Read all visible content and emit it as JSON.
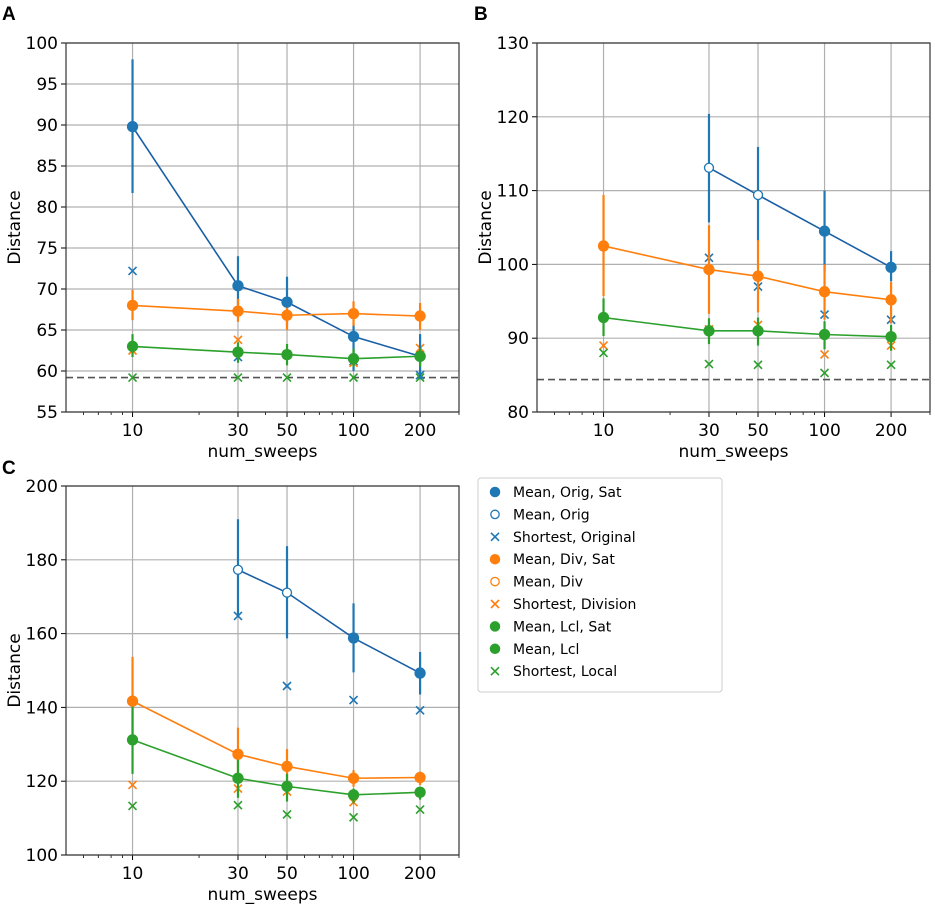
{
  "chart_data": [
    {
      "type": "line",
      "panel": "A",
      "xlabel": "num_sweeps",
      "ylabel": "Distance",
      "xscale": "log",
      "xlim": [
        5,
        300
      ],
      "ylim": [
        55,
        100
      ],
      "x": [
        10,
        30,
        50,
        100,
        200
      ],
      "xticks": [
        "10",
        "30",
        "50",
        "100",
        "200"
      ],
      "yticks": [
        "55",
        "60",
        "65",
        "70",
        "75",
        "80",
        "85",
        "90",
        "95",
        "100"
      ],
      "grid": true,
      "baseline": 59.2,
      "mean_series": [
        {
          "name": "Mean, Orig",
          "color": "#1f77b4",
          "line_color": "#1a5fa6",
          "y": [
            89.8,
            70.4,
            68.4,
            64.2,
            61.8
          ],
          "err_low": [
            81.7,
            67.0,
            65.5,
            60.0,
            59.0
          ],
          "err_high": [
            98.0,
            74.0,
            71.5,
            65.7,
            64.5
          ],
          "sat": [
            true,
            true,
            true,
            true,
            true
          ]
        },
        {
          "name": "Mean, Div",
          "color": "#ff7f0e",
          "line_color": "#ff7f0e",
          "y": [
            68.0,
            67.3,
            66.8,
            67.0,
            66.7
          ],
          "err_low": [
            66.2,
            66.0,
            65.0,
            65.5,
            65.0
          ],
          "err_high": [
            69.9,
            68.8,
            68.5,
            68.5,
            68.3
          ],
          "sat": [
            true,
            true,
            true,
            true,
            true
          ]
        },
        {
          "name": "Mean, Lcl",
          "color": "#2ca02c",
          "line_color": "#2ca02c",
          "y": [
            63.0,
            62.3,
            62.0,
            61.5,
            61.8
          ],
          "err_low": [
            61.7,
            61.0,
            60.7,
            60.5,
            60.5
          ],
          "err_high": [
            64.5,
            63.5,
            63.3,
            62.7,
            62.8
          ],
          "sat": [
            true,
            true,
            true,
            true,
            true
          ]
        }
      ],
      "shortest_series": [
        {
          "name": "Shortest, Original",
          "color": "#1f77b4",
          "y": [
            72.2,
            61.7,
            62.0,
            61.2,
            59.5
          ]
        },
        {
          "name": "Shortest, Division",
          "color": "#ff7f0e",
          "y": [
            62.5,
            63.8,
            62.0,
            61.0,
            62.8
          ]
        },
        {
          "name": "Shortest, Local",
          "color": "#2ca02c",
          "y": [
            59.2,
            59.2,
            59.2,
            59.2,
            59.2
          ]
        }
      ]
    },
    {
      "type": "line",
      "panel": "B",
      "xlabel": "num_sweeps",
      "ylabel": "Distance",
      "xscale": "log",
      "xlim": [
        5,
        300
      ],
      "ylim": [
        80,
        130
      ],
      "x": [
        10,
        30,
        50,
        100,
        200
      ],
      "xticks": [
        "10",
        "30",
        "50",
        "100",
        "200"
      ],
      "yticks": [
        "80",
        "90",
        "100",
        "110",
        "120",
        "130"
      ],
      "grid": true,
      "baseline": 84.4,
      "mean_series": [
        {
          "name": "Mean, Orig",
          "color": "#1f77b4",
          "line_color": "#1a5fa6",
          "y": [
            null,
            113.1,
            109.4,
            104.5,
            99.6
          ],
          "err_low": [
            null,
            105.7,
            103.2,
            99.0,
            97.7
          ],
          "err_high": [
            null,
            120.4,
            115.9,
            110.0,
            101.8
          ],
          "sat": [
            true,
            false,
            false,
            true,
            true
          ]
        },
        {
          "name": "Mean, Div",
          "color": "#ff7f0e",
          "line_color": "#ff7f0e",
          "y": [
            102.5,
            99.3,
            98.4,
            96.3,
            95.2
          ],
          "err_low": [
            95.7,
            93.3,
            93.5,
            92.5,
            92.0
          ],
          "err_high": [
            109.4,
            105.3,
            103.3,
            100.0,
            97.6
          ],
          "sat": [
            true,
            true,
            true,
            true,
            true
          ]
        },
        {
          "name": "Mean, Lcl",
          "color": "#2ca02c",
          "line_color": "#2ca02c",
          "y": [
            92.8,
            91.0,
            91.0,
            90.5,
            90.2
          ],
          "err_low": [
            90.3,
            89.2,
            89.0,
            88.5,
            88.3
          ],
          "err_high": [
            95.4,
            92.7,
            92.8,
            92.3,
            91.8
          ],
          "sat": [
            true,
            true,
            true,
            true,
            true
          ]
        }
      ],
      "shortest_series": [
        {
          "name": "Shortest, Original",
          "color": "#1f77b4",
          "y": [
            null,
            100.9,
            97.0,
            93.2,
            92.5
          ]
        },
        {
          "name": "Shortest, Division",
          "color": "#ff7f0e",
          "y": [
            89.0,
            91.2,
            91.8,
            87.8,
            89.0
          ]
        },
        {
          "name": "Shortest, Local",
          "color": "#2ca02c",
          "y": [
            88.0,
            86.5,
            86.4,
            85.3,
            86.4
          ]
        }
      ]
    },
    {
      "type": "line",
      "panel": "C",
      "xlabel": "num_sweeps",
      "ylabel": "Distance",
      "xscale": "log",
      "xlim": [
        5,
        300
      ],
      "ylim": [
        100,
        200
      ],
      "x": [
        10,
        30,
        50,
        100,
        200
      ],
      "xticks": [
        "10",
        "30",
        "50",
        "100",
        "200"
      ],
      "yticks": [
        "100",
        "120",
        "140",
        "160",
        "180",
        "200"
      ],
      "grid": true,
      "baseline": null,
      "mean_series": [
        {
          "name": "Mean, Orig",
          "color": "#1f77b4",
          "line_color": "#1a5fa6",
          "y": [
            null,
            177.3,
            171.1,
            158.8,
            149.3
          ],
          "err_low": [
            null,
            165.0,
            158.7,
            149.5,
            143.5
          ],
          "err_high": [
            null,
            191.0,
            183.7,
            168.2,
            155.0
          ],
          "sat": [
            true,
            false,
            false,
            true,
            true
          ]
        },
        {
          "name": "Mean, Div",
          "color": "#ff7f0e",
          "line_color": "#ff7f0e",
          "y": [
            141.7,
            127.3,
            124.0,
            120.8,
            121.0
          ],
          "err_low": [
            130.0,
            120.0,
            118.0,
            118.5,
            119.0
          ],
          "err_high": [
            153.7,
            134.5,
            128.7,
            123.0,
            122.6
          ],
          "sat": [
            true,
            true,
            true,
            true,
            true
          ]
        },
        {
          "name": "Mean, Lcl",
          "color": "#2ca02c",
          "line_color": "#2ca02c",
          "y": [
            131.2,
            120.8,
            118.6,
            116.3,
            117.0
          ],
          "err_low": [
            122.0,
            115.5,
            114.5,
            114.0,
            115.0
          ],
          "err_high": [
            141.0,
            126.0,
            122.0,
            118.0,
            118.0
          ],
          "sat": [
            true,
            true,
            true,
            true,
            true
          ]
        }
      ],
      "shortest_series": [
        {
          "name": "Shortest, Original",
          "color": "#1f77b4",
          "y": [
            null,
            164.8,
            145.8,
            142.0,
            139.2
          ]
        },
        {
          "name": "Shortest, Division",
          "color": "#ff7f0e",
          "y": [
            119.0,
            118.0,
            117.2,
            114.3,
            117.0
          ]
        },
        {
          "name": "Shortest, Local",
          "color": "#2ca02c",
          "y": [
            113.3,
            113.5,
            111.0,
            110.2,
            112.3
          ]
        }
      ]
    }
  ],
  "legend": {
    "placement": "right of panel C",
    "entries": [
      {
        "label": "Mean, Orig, Sat",
        "color": "#1f77b4",
        "marker": "filled-circle"
      },
      {
        "label": "Mean, Orig",
        "color": "#1f77b4",
        "marker": "open-circle"
      },
      {
        "label": "Shortest, Original",
        "color": "#1f77b4",
        "marker": "x"
      },
      {
        "label": "Mean, Div, Sat",
        "color": "#ff7f0e",
        "marker": "filled-circle"
      },
      {
        "label": "Mean, Div",
        "color": "#ff7f0e",
        "marker": "open-circle"
      },
      {
        "label": "Shortest, Division",
        "color": "#ff7f0e",
        "marker": "x"
      },
      {
        "label": "Mean, Lcl, Sat",
        "color": "#2ca02c",
        "marker": "filled-circle"
      },
      {
        "label": "Mean, Lcl",
        "color": "#2ca02c",
        "marker": "filled-circle"
      },
      {
        "label": "Shortest, Local",
        "color": "#2ca02c",
        "marker": "x"
      }
    ]
  }
}
